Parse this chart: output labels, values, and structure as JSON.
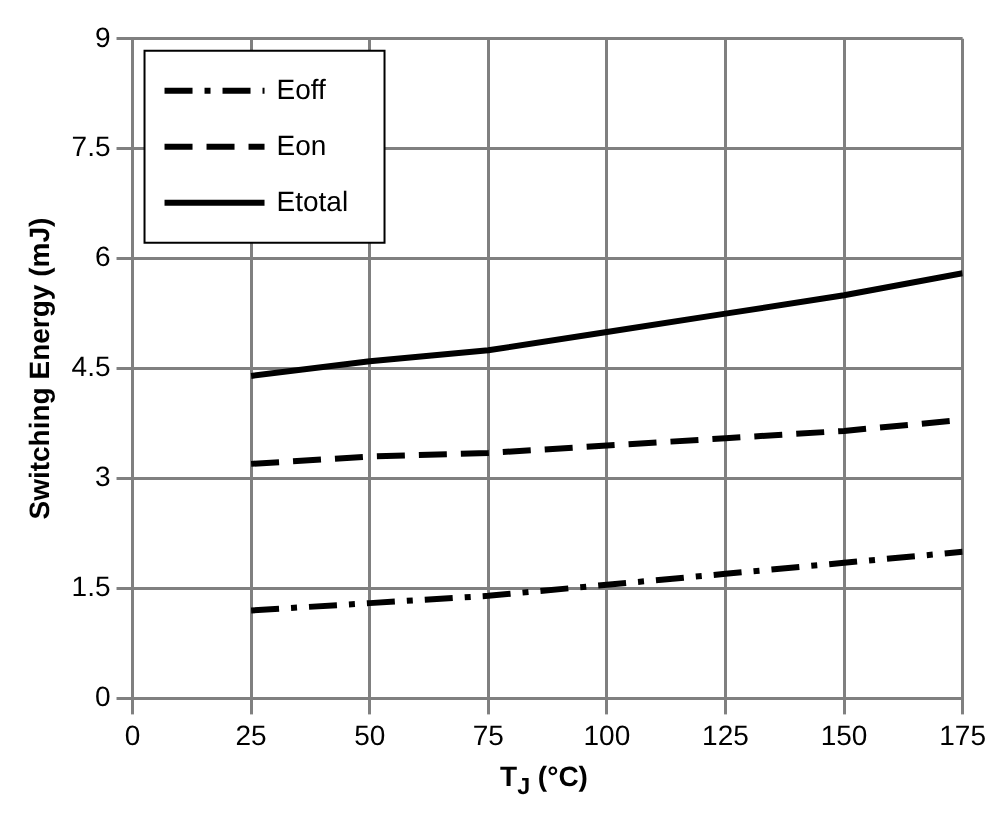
{
  "chart_data": {
    "type": "line",
    "xlabel": "T$_{J}$ (°C)",
    "ylabel": "Switching Energy (mJ)",
    "x": [
      25,
      50,
      75,
      100,
      125,
      150,
      175
    ],
    "series": [
      {
        "name": "Eoff",
        "color": "#000000",
        "line_style": "dashdot",
        "values": [
          1.2,
          1.3,
          1.4,
          1.55,
          1.7,
          1.85,
          2.0
        ]
      },
      {
        "name": "Eon",
        "color": "#000000",
        "line_style": "dashed",
        "values": [
          3.2,
          3.3,
          3.35,
          3.45,
          3.55,
          3.65,
          3.8
        ]
      },
      {
        "name": "Etotal",
        "color": "#000000",
        "line_style": "solid",
        "values": [
          4.4,
          4.6,
          4.75,
          5.0,
          5.25,
          5.5,
          5.8
        ]
      }
    ],
    "xlim": [
      0,
      175
    ],
    "xticks": [
      0,
      25,
      50,
      75,
      100,
      125,
      150,
      175
    ],
    "ylim": [
      0,
      9
    ],
    "yticks": [
      0,
      1.5,
      3,
      4.5,
      6,
      7.5,
      9
    ],
    "grid": true,
    "legend": "top left"
  }
}
